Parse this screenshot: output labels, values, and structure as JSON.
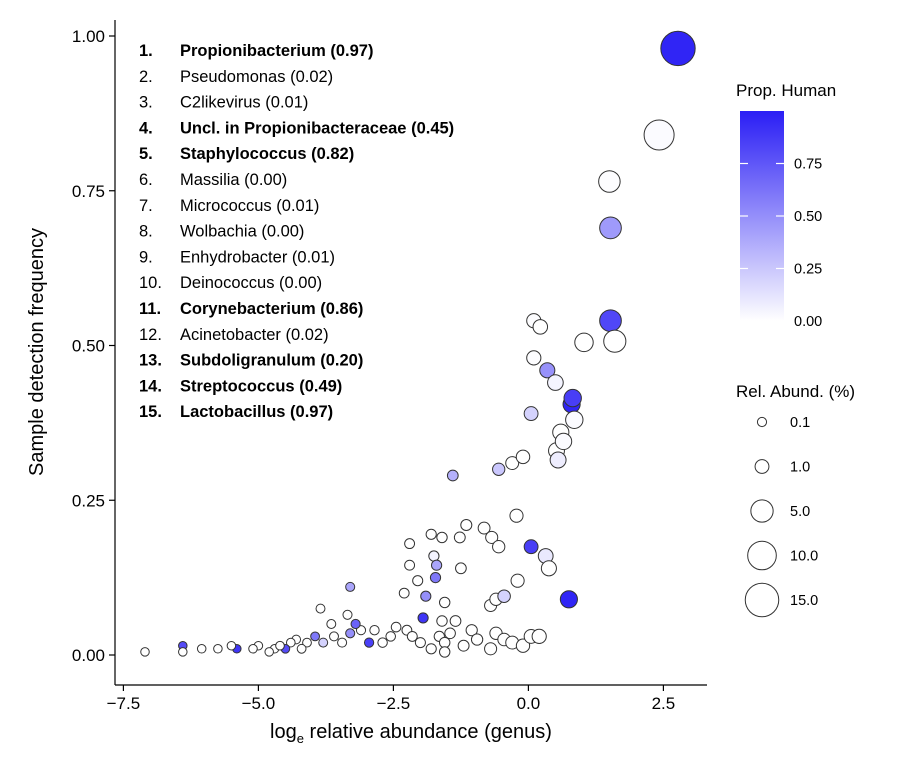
{
  "chart_data": {
    "type": "scatter",
    "xlabel_prefix": "log",
    "xlabel_sub": "e",
    "xlabel_rest": " relative abundance (genus)",
    "ylabel": "Sample detection frequency",
    "xlim": [
      -7.5,
      3.3
    ],
    "ylim": [
      -0.03,
      1.03
    ],
    "x_ticks": [
      {
        "value": -7.5,
        "label": "−7.5"
      },
      {
        "value": -5.0,
        "label": "−5.0"
      },
      {
        "value": -2.5,
        "label": "−2.5"
      },
      {
        "value": 0.0,
        "label": "0.0"
      },
      {
        "value": 2.5,
        "label": "2.5"
      }
    ],
    "y_ticks": [
      {
        "value": 0.0,
        "label": "0.00"
      },
      {
        "value": 0.25,
        "label": "0.25"
      },
      {
        "value": 0.5,
        "label": "0.50"
      },
      {
        "value": 0.75,
        "label": "0.75"
      },
      {
        "value": 1.0,
        "label": "1.00"
      }
    ],
    "color_legend": {
      "title": "Prop. Human",
      "low_color": "#ffffff",
      "high_color": "#2a1ef5",
      "range": [
        0,
        1
      ],
      "ticks": [
        {
          "value": 0.75,
          "label": "0.75"
        },
        {
          "value": 0.5,
          "label": "0.50"
        },
        {
          "value": 0.25,
          "label": "0.25"
        },
        {
          "value": 0.0,
          "label": "0.00"
        }
      ]
    },
    "size_legend": {
      "title": "Rel. Abund. (%)",
      "entries": [
        {
          "value": 0.1,
          "label": "0.1"
        },
        {
          "value": 1.0,
          "label": "1.0"
        },
        {
          "value": 5.0,
          "label": "5.0"
        },
        {
          "value": 10.0,
          "label": "10.0"
        },
        {
          "value": 15.0,
          "label": "15.0"
        }
      ]
    },
    "top_genera": [
      {
        "rank": "1.",
        "name": "Propionibacterium",
        "prop": "(0.97)",
        "bold": true
      },
      {
        "rank": "2.",
        "name": "Pseudomonas",
        "prop": "(0.02)",
        "bold": false
      },
      {
        "rank": "3.",
        "name": "C2likevirus",
        "prop": "(0.01)",
        "bold": false
      },
      {
        "rank": "4.",
        "name": "Uncl. in Propionibacteraceae",
        "prop": "(0.45)",
        "bold": true
      },
      {
        "rank": "5.",
        "name": "Staphylococcus",
        "prop": "(0.82)",
        "bold": true
      },
      {
        "rank": "6.",
        "name": "Massilia",
        "prop": "(0.00)",
        "bold": false
      },
      {
        "rank": "7.",
        "name": "Micrococcus",
        "prop": "(0.01)",
        "bold": false
      },
      {
        "rank": "8.",
        "name": "Wolbachia",
        "prop": "(0.00)",
        "bold": false
      },
      {
        "rank": "9.",
        "name": "Enhydrobacter",
        "prop": "(0.01)",
        "bold": false
      },
      {
        "rank": "10.",
        "name": "Deinococcus",
        "prop": "(0.00)",
        "bold": false
      },
      {
        "rank": "11.",
        "name": "Corynebacterium",
        "prop": "(0.86)",
        "bold": true
      },
      {
        "rank": "12.",
        "name": "Acinetobacter",
        "prop": "(0.02)",
        "bold": false
      },
      {
        "rank": "13.",
        "name": "Subdoligranulum",
        "prop": "(0.20)",
        "bold": true
      },
      {
        "rank": "14.",
        "name": "Streptococcus",
        "prop": "(0.49)",
        "bold": true
      },
      {
        "rank": "15.",
        "name": "Lactobacillus",
        "prop": "(0.97)",
        "bold": true
      }
    ],
    "points": [
      {
        "x": 2.77,
        "y": 0.98,
        "abund": 16.0,
        "prop": 0.97
      },
      {
        "x": 2.42,
        "y": 0.84,
        "abund": 11.3,
        "prop": 0.02
      },
      {
        "x": 1.5,
        "y": 0.765,
        "abund": 4.5,
        "prop": 0.01
      },
      {
        "x": 1.52,
        "y": 0.69,
        "abund": 4.6,
        "prop": 0.45
      },
      {
        "x": 1.52,
        "y": 0.54,
        "abund": 4.6,
        "prop": 0.82
      },
      {
        "x": 1.6,
        "y": 0.507,
        "abund": 4.9,
        "prop": 0.0
      },
      {
        "x": 0.82,
        "y": 0.415,
        "abund": 2.3,
        "prop": 0.86
      },
      {
        "x": 0.8,
        "y": 0.405,
        "abund": 2.2,
        "prop": 0.97
      },
      {
        "x": 0.85,
        "y": 0.38,
        "abund": 2.3,
        "prop": 0.02
      },
      {
        "x": 1.03,
        "y": 0.505,
        "abund": 2.8,
        "prop": 0.0
      },
      {
        "x": 0.1,
        "y": 0.54,
        "abund": 1.1,
        "prop": 0.01
      },
      {
        "x": 0.22,
        "y": 0.53,
        "abund": 1.2,
        "prop": 0.0
      },
      {
        "x": 0.35,
        "y": 0.46,
        "abund": 1.4,
        "prop": 0.49
      },
      {
        "x": 0.1,
        "y": 0.48,
        "abund": 1.1,
        "prop": 0.01
      },
      {
        "x": 0.5,
        "y": 0.44,
        "abund": 1.6,
        "prop": 0.05
      },
      {
        "x": 0.6,
        "y": 0.36,
        "abund": 1.8,
        "prop": 0.0
      },
      {
        "x": 0.65,
        "y": 0.345,
        "abund": 1.9,
        "prop": 0.02
      },
      {
        "x": 0.52,
        "y": 0.33,
        "abund": 1.7,
        "prop": 0.0
      },
      {
        "x": 0.55,
        "y": 0.315,
        "abund": 1.7,
        "prop": 0.08
      },
      {
        "x": 0.05,
        "y": 0.39,
        "abund": 1.0,
        "prop": 0.2
      },
      {
        "x": -0.1,
        "y": 0.32,
        "abund": 0.9,
        "prop": 0.0
      },
      {
        "x": -0.3,
        "y": 0.31,
        "abund": 0.75,
        "prop": 0.0
      },
      {
        "x": -0.55,
        "y": 0.3,
        "abund": 0.6,
        "prop": 0.25
      },
      {
        "x": -1.4,
        "y": 0.29,
        "abund": 0.3,
        "prop": 0.35
      },
      {
        "x": -0.22,
        "y": 0.225,
        "abund": 0.8,
        "prop": 0.0
      },
      {
        "x": 0.05,
        "y": 0.175,
        "abund": 1.0,
        "prop": 0.86
      },
      {
        "x": 0.32,
        "y": 0.16,
        "abund": 1.3,
        "prop": 0.1
      },
      {
        "x": 0.38,
        "y": 0.14,
        "abund": 1.4,
        "prop": 0.0
      },
      {
        "x": 0.75,
        "y": 0.09,
        "abund": 2.2,
        "prop": 0.97
      },
      {
        "x": -0.2,
        "y": 0.12,
        "abund": 0.8,
        "prop": 0.0
      },
      {
        "x": -0.55,
        "y": 0.175,
        "abund": 0.6,
        "prop": 0.0
      },
      {
        "x": -0.68,
        "y": 0.19,
        "abund": 0.55,
        "prop": 0.0
      },
      {
        "x": -0.82,
        "y": 0.205,
        "abund": 0.5,
        "prop": 0.0
      },
      {
        "x": -0.45,
        "y": 0.095,
        "abund": 0.65,
        "prop": 0.2
      },
      {
        "x": -0.7,
        "y": 0.08,
        "abund": 0.55,
        "prop": 0.0
      },
      {
        "x": -1.15,
        "y": 0.21,
        "abund": 0.35,
        "prop": 0.0
      },
      {
        "x": -1.27,
        "y": 0.19,
        "abund": 0.32,
        "prop": 0.0
      },
      {
        "x": -1.25,
        "y": 0.14,
        "abund": 0.3,
        "prop": 0.0
      },
      {
        "x": -1.6,
        "y": 0.19,
        "abund": 0.25,
        "prop": 0.0
      },
      {
        "x": -1.8,
        "y": 0.195,
        "abund": 0.22,
        "prop": 0.0
      },
      {
        "x": -1.75,
        "y": 0.16,
        "abund": 0.22,
        "prop": 0.05
      },
      {
        "x": -1.7,
        "y": 0.145,
        "abund": 0.22,
        "prop": 0.4
      },
      {
        "x": -1.72,
        "y": 0.125,
        "abund": 0.22,
        "prop": 0.6
      },
      {
        "x": -2.2,
        "y": 0.18,
        "abund": 0.18,
        "prop": 0.0
      },
      {
        "x": -2.2,
        "y": 0.145,
        "abund": 0.18,
        "prop": 0.0
      },
      {
        "x": -2.05,
        "y": 0.12,
        "abund": 0.2,
        "prop": 0.0
      },
      {
        "x": -2.3,
        "y": 0.1,
        "abund": 0.17,
        "prop": 0.0
      },
      {
        "x": -1.9,
        "y": 0.095,
        "abund": 0.21,
        "prop": 0.5
      },
      {
        "x": -1.55,
        "y": 0.085,
        "abund": 0.25,
        "prop": 0.0
      },
      {
        "x": -1.95,
        "y": 0.06,
        "abund": 0.21,
        "prop": 0.9
      },
      {
        "x": -1.6,
        "y": 0.055,
        "abund": 0.25,
        "prop": 0.0
      },
      {
        "x": -1.35,
        "y": 0.055,
        "abund": 0.3,
        "prop": 0.0
      },
      {
        "x": -0.6,
        "y": 0.09,
        "abund": 0.6,
        "prop": 0.0
      },
      {
        "x": -1.55,
        "y": 0.02,
        "abund": 0.25,
        "prop": 0.0
      },
      {
        "x": -1.45,
        "y": 0.035,
        "abund": 0.28,
        "prop": 0.0
      },
      {
        "x": -1.65,
        "y": 0.03,
        "abund": 0.23,
        "prop": 0.0
      },
      {
        "x": -1.05,
        "y": 0.04,
        "abund": 0.38,
        "prop": 0.0
      },
      {
        "x": -0.95,
        "y": 0.025,
        "abund": 0.4,
        "prop": 0.0
      },
      {
        "x": -1.2,
        "y": 0.015,
        "abund": 0.33,
        "prop": 0.0
      },
      {
        "x": -0.6,
        "y": 0.035,
        "abund": 0.6,
        "prop": 0.0
      },
      {
        "x": -0.45,
        "y": 0.025,
        "abund": 0.65,
        "prop": 0.0
      },
      {
        "x": -0.3,
        "y": 0.02,
        "abund": 0.75,
        "prop": 0.0
      },
      {
        "x": -0.1,
        "y": 0.015,
        "abund": 0.85,
        "prop": 0.0
      },
      {
        "x": 0.05,
        "y": 0.03,
        "abund": 1.0,
        "prop": 0.0
      },
      {
        "x": 0.2,
        "y": 0.03,
        "abund": 1.1,
        "prop": 0.0
      },
      {
        "x": -0.7,
        "y": 0.01,
        "abund": 0.55,
        "prop": 0.0
      },
      {
        "x": -1.55,
        "y": 0.005,
        "abund": 0.25,
        "prop": 0.0
      },
      {
        "x": -1.8,
        "y": 0.01,
        "abund": 0.22,
        "prop": 0.0
      },
      {
        "x": -2.0,
        "y": 0.02,
        "abund": 0.2,
        "prop": 0.0
      },
      {
        "x": -2.15,
        "y": 0.03,
        "abund": 0.18,
        "prop": 0.0
      },
      {
        "x": -2.25,
        "y": 0.04,
        "abund": 0.17,
        "prop": 0.0
      },
      {
        "x": -2.45,
        "y": 0.045,
        "abund": 0.15,
        "prop": 0.0
      },
      {
        "x": -2.55,
        "y": 0.03,
        "abund": 0.14,
        "prop": 0.0
      },
      {
        "x": -2.7,
        "y": 0.02,
        "abund": 0.13,
        "prop": 0.0
      },
      {
        "x": -2.85,
        "y": 0.04,
        "abund": 0.12,
        "prop": 0.0
      },
      {
        "x": -2.95,
        "y": 0.02,
        "abund": 0.11,
        "prop": 0.85
      },
      {
        "x": -3.1,
        "y": 0.04,
        "abund": 0.1,
        "prop": 0.0
      },
      {
        "x": -3.2,
        "y": 0.05,
        "abund": 0.1,
        "prop": 0.7
      },
      {
        "x": -3.3,
        "y": 0.035,
        "abund": 0.09,
        "prop": 0.5
      },
      {
        "x": -3.35,
        "y": 0.065,
        "abund": 0.09,
        "prop": 0.0
      },
      {
        "x": -3.3,
        "y": 0.11,
        "abund": 0.09,
        "prop": 0.4
      },
      {
        "x": -3.45,
        "y": 0.02,
        "abund": 0.09,
        "prop": 0.0
      },
      {
        "x": -3.6,
        "y": 0.03,
        "abund": 0.08,
        "prop": 0.0
      },
      {
        "x": -3.65,
        "y": 0.05,
        "abund": 0.08,
        "prop": 0.0
      },
      {
        "x": -3.8,
        "y": 0.02,
        "abund": 0.08,
        "prop": 0.2
      },
      {
        "x": -3.95,
        "y": 0.03,
        "abund": 0.07,
        "prop": 0.6
      },
      {
        "x": -4.1,
        "y": 0.02,
        "abund": 0.07,
        "prop": 0.0
      },
      {
        "x": -4.2,
        "y": 0.01,
        "abund": 0.07,
        "prop": 0.0
      },
      {
        "x": -4.3,
        "y": 0.025,
        "abund": 0.06,
        "prop": 0.0
      },
      {
        "x": -4.4,
        "y": 0.02,
        "abund": 0.06,
        "prop": 0.0
      },
      {
        "x": -4.5,
        "y": 0.01,
        "abund": 0.06,
        "prop": 0.8
      },
      {
        "x": -4.6,
        "y": 0.015,
        "abund": 0.06,
        "prop": 0.0
      },
      {
        "x": -4.7,
        "y": 0.01,
        "abund": 0.05,
        "prop": 0.0
      },
      {
        "x": -4.8,
        "y": 0.005,
        "abund": 0.05,
        "prop": 0.0
      },
      {
        "x": -3.85,
        "y": 0.075,
        "abund": 0.08,
        "prop": 0.0
      },
      {
        "x": -5.0,
        "y": 0.015,
        "abund": 0.05,
        "prop": 0.0
      },
      {
        "x": -5.1,
        "y": 0.01,
        "abund": 0.05,
        "prop": 0.0
      },
      {
        "x": -5.4,
        "y": 0.01,
        "abund": 0.05,
        "prop": 0.9
      },
      {
        "x": -5.5,
        "y": 0.015,
        "abund": 0.05,
        "prop": 0.0
      },
      {
        "x": -5.75,
        "y": 0.01,
        "abund": 0.05,
        "prop": 0.0
      },
      {
        "x": -6.05,
        "y": 0.01,
        "abund": 0.05,
        "prop": 0.0
      },
      {
        "x": -6.4,
        "y": 0.015,
        "abund": 0.05,
        "prop": 0.8
      },
      {
        "x": -6.4,
        "y": 0.005,
        "abund": 0.05,
        "prop": 0.0
      },
      {
        "x": -7.1,
        "y": 0.005,
        "abund": 0.05,
        "prop": 0.0
      }
    ]
  }
}
